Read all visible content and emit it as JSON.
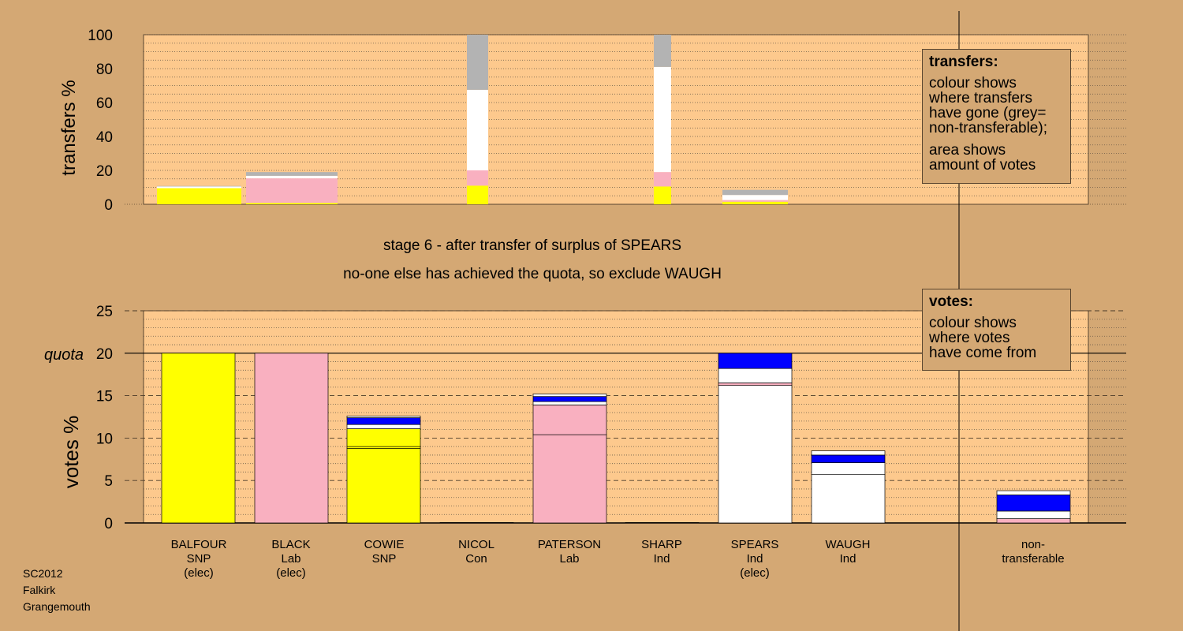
{
  "title_line1": "stage 6 - after transfer of surplus of SPEARS",
  "title_line2": "no-one else has achieved the quota, so exclude WAUGH",
  "footer": [
    "SC2012",
    "Falkirk",
    "Grangemouth"
  ],
  "colors": {
    "background": "#d4a874",
    "plot_background": "#fdc98d",
    "SNP": "#ffff00",
    "Lab": "#f9b0c0",
    "Ind": "#ffffff",
    "Con": "#0000ff",
    "non_transferable": "#b3b3b3"
  },
  "legend_transfers": {
    "heading": "transfers:",
    "lines_a": [
      "colour shows",
      "where transfers",
      "have gone (grey=",
      "non-transferable);"
    ],
    "lines_b": [
      "area shows",
      "amount of votes"
    ]
  },
  "legend_votes": {
    "heading": "votes:",
    "lines": [
      "colour shows",
      "where votes",
      "have come from"
    ]
  },
  "chart_data": [
    {
      "type": "bar",
      "name": "transfers",
      "ylabel": "transfers %",
      "ylim": [
        0,
        100
      ],
      "yticks": [
        0,
        20,
        40,
        60,
        80,
        100
      ],
      "columns": [
        {
          "segments": [
            {
              "party": "SNP",
              "value": 9.5
            },
            {
              "party": "Ind",
              "value": 1.0
            },
            {
              "party": "non_transferable",
              "value": 0.3
            }
          ]
        },
        {
          "segments": [
            {
              "party": "SNP",
              "value": 0.8
            },
            {
              "party": "Lab",
              "value": 14.5
            },
            {
              "party": "Ind",
              "value": 1.5
            },
            {
              "party": "non_transferable",
              "value": 2.2
            }
          ]
        },
        {
          "segments": [
            {
              "party": "SNP",
              "value": 11.0
            },
            {
              "party": "Lab",
              "value": 9.0
            },
            {
              "party": "Ind",
              "value": 47.5
            },
            {
              "party": "non_transferable",
              "value": 32.5
            }
          ]
        },
        {
          "segments": [
            {
              "party": "SNP",
              "value": 10.5
            },
            {
              "party": "Lab",
              "value": 8.5
            },
            {
              "party": "Ind",
              "value": 62.0
            },
            {
              "party": "non_transferable",
              "value": 19.0
            }
          ]
        },
        {
          "segments": [
            {
              "party": "SNP",
              "value": 1.5
            },
            {
              "party": "Lab",
              "value": 1.0
            },
            {
              "party": "Ind",
              "value": 3.0
            },
            {
              "party": "non_transferable",
              "value": 3.0
            }
          ]
        }
      ]
    },
    {
      "type": "bar",
      "name": "votes",
      "ylabel": "votes %",
      "ylim": [
        0,
        25
      ],
      "yticks": [
        0,
        5,
        10,
        15,
        20,
        25
      ],
      "quota": 20,
      "quota_label": "quota",
      "candidates": [
        {
          "lines": [
            "BALFOUR",
            "SNP",
            "(elec)"
          ],
          "segments": [
            {
              "party": "SNP",
              "value": 20.0
            }
          ]
        },
        {
          "lines": [
            "BLACK",
            "Lab",
            "(elec)"
          ],
          "segments": [
            {
              "party": "Lab",
              "value": 20.0
            }
          ]
        },
        {
          "lines": [
            "COWIE",
            "SNP"
          ],
          "segments": [
            {
              "party": "SNP",
              "value": 8.8
            },
            {
              "party": "SNP",
              "value": 0.2
            },
            {
              "party": "SNP",
              "value": 2.1
            },
            {
              "party": "Ind",
              "value": 0.5
            },
            {
              "party": "Con",
              "value": 0.8
            },
            {
              "party": "Ind",
              "value": 0.2
            }
          ]
        },
        {
          "lines": [
            "NICOL",
            "Con"
          ],
          "segments": [
            {
              "party": "Con",
              "value": 0.05
            }
          ]
        },
        {
          "lines": [
            "PATERSON",
            "Lab"
          ],
          "segments": [
            {
              "party": "Lab",
              "value": 10.4
            },
            {
              "party": "Lab",
              "value": 3.5
            },
            {
              "party": "Ind",
              "value": 0.4
            },
            {
              "party": "Con",
              "value": 0.6
            },
            {
              "party": "Ind",
              "value": 0.3
            }
          ]
        },
        {
          "lines": [
            "SHARP",
            "Ind"
          ],
          "segments": [
            {
              "party": "Ind",
              "value": 0.05
            }
          ]
        },
        {
          "lines": [
            "SPEARS",
            "Ind",
            "(elec)"
          ],
          "segments": [
            {
              "party": "Ind",
              "value": 16.2
            },
            {
              "party": "Lab",
              "value": 0.3
            },
            {
              "party": "Ind",
              "value": 1.7
            },
            {
              "party": "Con",
              "value": 1.8
            }
          ]
        },
        {
          "lines": [
            "WAUGH",
            "Ind"
          ],
          "segments": [
            {
              "party": "Ind",
              "value": 5.7
            },
            {
              "party": "Ind",
              "value": 1.4
            },
            {
              "party": "Con",
              "value": 0.9
            },
            {
              "party": "Ind",
              "value": 0.5
            }
          ]
        },
        {
          "lines": [
            "non-",
            "transferable"
          ],
          "segments": [
            {
              "party": "Lab",
              "value": 0.5
            },
            {
              "party": "Ind",
              "value": 0.9
            },
            {
              "party": "Con",
              "value": 1.9
            },
            {
              "party": "Ind",
              "value": 0.5
            }
          ]
        }
      ]
    }
  ]
}
